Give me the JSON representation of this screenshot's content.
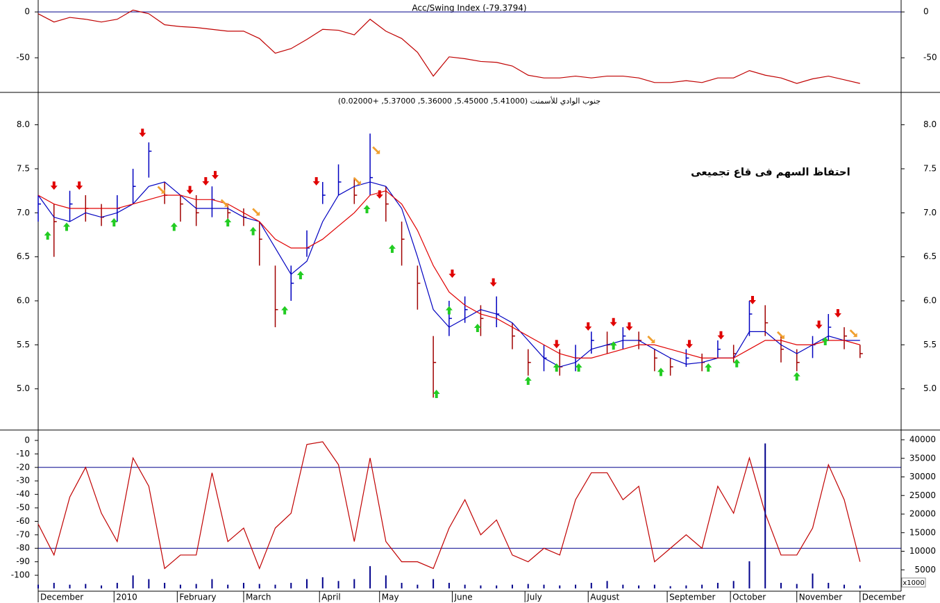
{
  "chart_data": [
    {
      "type": "line",
      "title": "Acc/Swing Index (-79.3794)",
      "x": [
        0,
        5,
        10,
        15,
        20,
        25,
        30,
        35,
        40,
        45,
        50,
        55,
        60,
        65,
        70,
        75,
        80,
        85,
        90,
        95,
        100,
        105,
        110,
        115,
        120,
        125,
        130,
        135,
        140,
        145,
        150,
        155,
        160,
        165,
        170,
        175,
        180,
        185,
        190,
        195,
        200,
        205,
        210,
        215,
        220,
        225,
        230,
        235,
        240,
        245,
        250,
        255,
        260
      ],
      "series": [
        {
          "color": "#c00000",
          "values": [
            -2,
            -11,
            -6,
            -8,
            -11,
            -8,
            2,
            -2,
            -14,
            -16,
            -17,
            -19,
            -21,
            -21,
            -29,
            -45,
            -40,
            -30,
            -19,
            -20,
            -25,
            -8,
            -21,
            -29,
            -44,
            -70,
            -49,
            -51,
            -54,
            -55,
            -59,
            -69,
            -72,
            -72,
            -70,
            -72,
            -70,
            -70,
            -72,
            -77,
            -77,
            -75,
            -77,
            -72,
            -72,
            -64,
            -69,
            -72,
            -78,
            -73,
            -70,
            -74,
            -78
          ]
        }
      ],
      "levels": [
        0
      ],
      "level_color": "#00008b",
      "xlim": [
        0,
        273
      ],
      "ylim": [
        -87,
        13
      ],
      "yticks": [
        0,
        -50
      ]
    },
    {
      "type": "ohlc",
      "title": "جنوب الوادي للأسمنت (5.41000, 5.45000, 5.36000, 5.37000, +0.02000)",
      "annotation": "احتفاظ السهم فى قاع تجميعى",
      "x": [
        0,
        5,
        10,
        15,
        20,
        25,
        30,
        35,
        40,
        45,
        50,
        55,
        60,
        65,
        70,
        75,
        80,
        85,
        90,
        95,
        100,
        105,
        110,
        115,
        120,
        125,
        130,
        135,
        140,
        145,
        150,
        155,
        160,
        165,
        170,
        175,
        180,
        185,
        190,
        195,
        200,
        205,
        210,
        215,
        220,
        225,
        230,
        235,
        240,
        245,
        250,
        255,
        260
      ],
      "high": [
        7.2,
        7.1,
        7.25,
        7.2,
        7.1,
        7.2,
        7.5,
        7.8,
        7.35,
        7.2,
        7.2,
        7.3,
        7.1,
        7.05,
        6.9,
        6.4,
        6.4,
        6.8,
        7.35,
        7.55,
        7.4,
        7.9,
        7.3,
        6.9,
        6.4,
        5.6,
        6.0,
        6.05,
        5.95,
        6.05,
        5.75,
        5.45,
        5.5,
        5.45,
        5.5,
        5.65,
        5.65,
        5.7,
        5.65,
        5.45,
        5.35,
        5.45,
        5.4,
        5.55,
        5.5,
        6.0,
        5.95,
        5.6,
        5.45,
        5.6,
        5.85,
        5.7,
        5.5
      ],
      "low": [
        6.9,
        6.5,
        6.9,
        6.9,
        6.85,
        6.9,
        7.1,
        7.4,
        7.1,
        6.9,
        6.85,
        6.95,
        6.9,
        6.85,
        6.4,
        5.7,
        6.0,
        6.5,
        7.1,
        7.2,
        7.1,
        7.2,
        6.9,
        6.4,
        5.9,
        4.9,
        5.6,
        5.75,
        5.6,
        5.7,
        5.45,
        5.15,
        5.2,
        5.15,
        5.2,
        5.4,
        5.4,
        5.45,
        5.45,
        5.2,
        5.15,
        5.25,
        5.2,
        5.35,
        5.3,
        5.6,
        5.6,
        5.3,
        5.2,
        5.35,
        5.55,
        5.45,
        5.35
      ],
      "close": [
        7.1,
        6.9,
        7.1,
        7.05,
        6.95,
        7.05,
        7.3,
        7.7,
        7.2,
        7.1,
        7.0,
        7.15,
        7.0,
        6.95,
        6.7,
        5.9,
        6.2,
        6.6,
        7.2,
        7.35,
        7.2,
        7.4,
        7.1,
        6.7,
        6.2,
        5.3,
        5.8,
        5.9,
        5.8,
        5.85,
        5.6,
        5.3,
        5.35,
        5.25,
        5.35,
        5.55,
        5.5,
        5.6,
        5.55,
        5.35,
        5.25,
        5.35,
        5.3,
        5.45,
        5.4,
        5.85,
        5.75,
        5.45,
        5.3,
        5.5,
        5.7,
        5.6,
        5.4
      ],
      "up_color": "#0000c0",
      "down_color": "#a00000",
      "series": [
        {
          "color": "#0000c0",
          "values": [
            7.2,
            6.95,
            6.9,
            7.0,
            6.95,
            7.0,
            7.1,
            7.3,
            7.35,
            7.2,
            7.05,
            7.05,
            7.05,
            6.95,
            6.9,
            6.6,
            6.3,
            6.45,
            6.9,
            7.2,
            7.3,
            7.35,
            7.3,
            7.05,
            6.5,
            5.9,
            5.7,
            5.8,
            5.9,
            5.85,
            5.75,
            5.55,
            5.35,
            5.25,
            5.3,
            5.45,
            5.5,
            5.55,
            5.55,
            5.45,
            5.35,
            5.28,
            5.3,
            5.35,
            5.35,
            5.65,
            5.65,
            5.5,
            5.4,
            5.5,
            5.6,
            5.55,
            5.55
          ]
        },
        {
          "color": "#e00000",
          "values": [
            7.2,
            7.1,
            7.05,
            7.05,
            7.05,
            7.05,
            7.1,
            7.15,
            7.2,
            7.2,
            7.15,
            7.15,
            7.1,
            7.0,
            6.9,
            6.7,
            6.6,
            6.6,
            6.7,
            6.85,
            7.0,
            7.2,
            7.25,
            7.1,
            6.8,
            6.4,
            6.1,
            5.95,
            5.85,
            5.8,
            5.7,
            5.6,
            5.5,
            5.4,
            5.35,
            5.35,
            5.4,
            5.45,
            5.5,
            5.5,
            5.45,
            5.4,
            5.35,
            5.35,
            5.35,
            5.45,
            5.55,
            5.55,
            5.5,
            5.5,
            5.55,
            5.55,
            5.5
          ]
        }
      ],
      "signal_colors": {
        "down": "#e00000",
        "up": "#22cc22",
        "diag": "#f0a030"
      },
      "signals": [
        {
          "x": 5,
          "y": 7.3,
          "kind": "down"
        },
        {
          "x": 13,
          "y": 7.3,
          "kind": "down"
        },
        {
          "x": 33,
          "y": 7.9,
          "kind": "down"
        },
        {
          "x": 48,
          "y": 7.25,
          "kind": "down"
        },
        {
          "x": 53,
          "y": 7.35,
          "kind": "down"
        },
        {
          "x": 56,
          "y": 7.42,
          "kind": "down"
        },
        {
          "x": 88,
          "y": 7.35,
          "kind": "down"
        },
        {
          "x": 108,
          "y": 7.2,
          "kind": "down"
        },
        {
          "x": 131,
          "y": 6.3,
          "kind": "down"
        },
        {
          "x": 144,
          "y": 6.2,
          "kind": "down"
        },
        {
          "x": 164,
          "y": 5.5,
          "kind": "down"
        },
        {
          "x": 174,
          "y": 5.7,
          "kind": "down"
        },
        {
          "x": 182,
          "y": 5.75,
          "kind": "down"
        },
        {
          "x": 187,
          "y": 5.7,
          "kind": "down"
        },
        {
          "x": 206,
          "y": 5.5,
          "kind": "down"
        },
        {
          "x": 216,
          "y": 5.6,
          "kind": "down"
        },
        {
          "x": 226,
          "y": 6.0,
          "kind": "down"
        },
        {
          "x": 247,
          "y": 5.72,
          "kind": "down"
        },
        {
          "x": 253,
          "y": 5.85,
          "kind": "down"
        },
        {
          "x": 3,
          "y": 6.75,
          "kind": "up"
        },
        {
          "x": 9,
          "y": 6.85,
          "kind": "up"
        },
        {
          "x": 24,
          "y": 6.9,
          "kind": "up"
        },
        {
          "x": 43,
          "y": 6.85,
          "kind": "up"
        },
        {
          "x": 60,
          "y": 6.9,
          "kind": "up"
        },
        {
          "x": 68,
          "y": 6.8,
          "kind": "up"
        },
        {
          "x": 78,
          "y": 5.9,
          "kind": "up"
        },
        {
          "x": 83,
          "y": 6.3,
          "kind": "up"
        },
        {
          "x": 104,
          "y": 7.05,
          "kind": "up"
        },
        {
          "x": 112,
          "y": 6.6,
          "kind": "up"
        },
        {
          "x": 126,
          "y": 4.95,
          "kind": "up"
        },
        {
          "x": 130,
          "y": 5.9,
          "kind": "up"
        },
        {
          "x": 139,
          "y": 5.7,
          "kind": "up"
        },
        {
          "x": 155,
          "y": 5.1,
          "kind": "up"
        },
        {
          "x": 164,
          "y": 5.25,
          "kind": "up"
        },
        {
          "x": 171,
          "y": 5.25,
          "kind": "up"
        },
        {
          "x": 182,
          "y": 5.5,
          "kind": "up"
        },
        {
          "x": 197,
          "y": 5.2,
          "kind": "up"
        },
        {
          "x": 212,
          "y": 5.25,
          "kind": "up"
        },
        {
          "x": 221,
          "y": 5.3,
          "kind": "up"
        },
        {
          "x": 240,
          "y": 5.15,
          "kind": "up"
        },
        {
          "x": 249,
          "y": 5.55,
          "kind": "up"
        },
        {
          "x": 39,
          "y": 7.25,
          "kind": "diag"
        },
        {
          "x": 59,
          "y": 7.1,
          "kind": "diag"
        },
        {
          "x": 69,
          "y": 7.0,
          "kind": "diag"
        },
        {
          "x": 101,
          "y": 7.35,
          "kind": "diag"
        },
        {
          "x": 107,
          "y": 7.7,
          "kind": "diag"
        },
        {
          "x": 194,
          "y": 5.55,
          "kind": "diag"
        },
        {
          "x": 235,
          "y": 5.6,
          "kind": "diag"
        },
        {
          "x": 258,
          "y": 5.62,
          "kind": "diag"
        }
      ],
      "xlim": [
        0,
        273
      ],
      "ylim": [
        4.54,
        8.36
      ],
      "yticks": [
        {
          "value": 5,
          "label": "5.0"
        },
        {
          "value": 5.5,
          "label": "5.5"
        },
        {
          "value": 6,
          "label": "6.0"
        },
        {
          "value": 6.5,
          "label": "6.5"
        },
        {
          "value": 7,
          "label": "7.0"
        },
        {
          "value": 7.5,
          "label": "7.5"
        },
        {
          "value": 8,
          "label": "8.0"
        }
      ]
    },
    {
      "type": "line",
      "x": [
        0,
        5,
        10,
        15,
        20,
        25,
        30,
        35,
        40,
        45,
        50,
        55,
        60,
        65,
        70,
        75,
        80,
        85,
        90,
        95,
        100,
        105,
        110,
        115,
        120,
        125,
        130,
        135,
        140,
        145,
        150,
        155,
        160,
        165,
        170,
        175,
        180,
        185,
        190,
        195,
        200,
        205,
        210,
        215,
        220,
        225,
        230,
        235,
        240,
        245,
        250,
        255,
        260
      ],
      "series": [
        {
          "color": "#c00000",
          "values": [
            -62,
            -85,
            -42,
            -20,
            -54,
            -75,
            -13,
            -34,
            -95,
            -85,
            -85,
            -24,
            -75,
            -65,
            -95,
            -65,
            -54,
            -3,
            -1,
            -18,
            -75,
            -13,
            -75,
            -90,
            -90,
            -95,
            -65,
            -44,
            -70,
            -59,
            -85,
            -90,
            -80,
            -85,
            -44,
            -24,
            -24,
            -44,
            -34,
            -90,
            -80,
            -70,
            -80,
            -34,
            -54,
            -13,
            -54,
            -85,
            -85,
            -65,
            -18,
            -44,
            -90
          ]
        },
        {
          "color": "#00008b",
          "axis": "y2",
          "style": "bar",
          "values": [
            1000,
            1500,
            1000,
            1200,
            800,
            1500,
            3500,
            2500,
            1500,
            1000,
            1200,
            2500,
            1000,
            1500,
            1200,
            1000,
            1500,
            2500,
            3000,
            2000,
            2500,
            6000,
            3500,
            1500,
            1000,
            2500,
            1500,
            1000,
            800,
            800,
            1000,
            1200,
            1000,
            800,
            1000,
            1500,
            2000,
            1000,
            800,
            1000,
            600,
            800,
            1000,
            1500,
            2000,
            7300,
            39000,
            1500,
            1200,
            4000,
            1500,
            1000,
            800
          ]
        }
      ],
      "levels": [
        -20,
        -80
      ],
      "level_color": "#00008b",
      "y2_unit": "x1000",
      "xlim": [
        0,
        273
      ],
      "ylim": [
        -111.3,
        7.2
      ],
      "yticks": [
        0,
        -10,
        -20,
        -30,
        -40,
        -50,
        -60,
        -70,
        -80,
        -90,
        -100
      ],
      "y2lim": [
        -560,
        42430
      ],
      "y2ticks": [
        5000,
        10000,
        15000,
        20000,
        25000,
        30000,
        35000,
        40000
      ],
      "xticks": [
        {
          "value": 0,
          "label": "December"
        },
        {
          "value": 24,
          "label": "2010"
        },
        {
          "value": 44,
          "label": "February"
        },
        {
          "value": 65,
          "label": "March"
        },
        {
          "value": 89,
          "label": "April"
        },
        {
          "value": 108,
          "label": "May"
        },
        {
          "value": 131,
          "label": "June"
        },
        {
          "value": 154,
          "label": "July"
        },
        {
          "value": 174,
          "label": "August"
        },
        {
          "value": 199,
          "label": "September"
        },
        {
          "value": 219,
          "label": "October"
        },
        {
          "value": 240,
          "label": "November"
        },
        {
          "value": 260,
          "label": "December"
        }
      ]
    }
  ]
}
